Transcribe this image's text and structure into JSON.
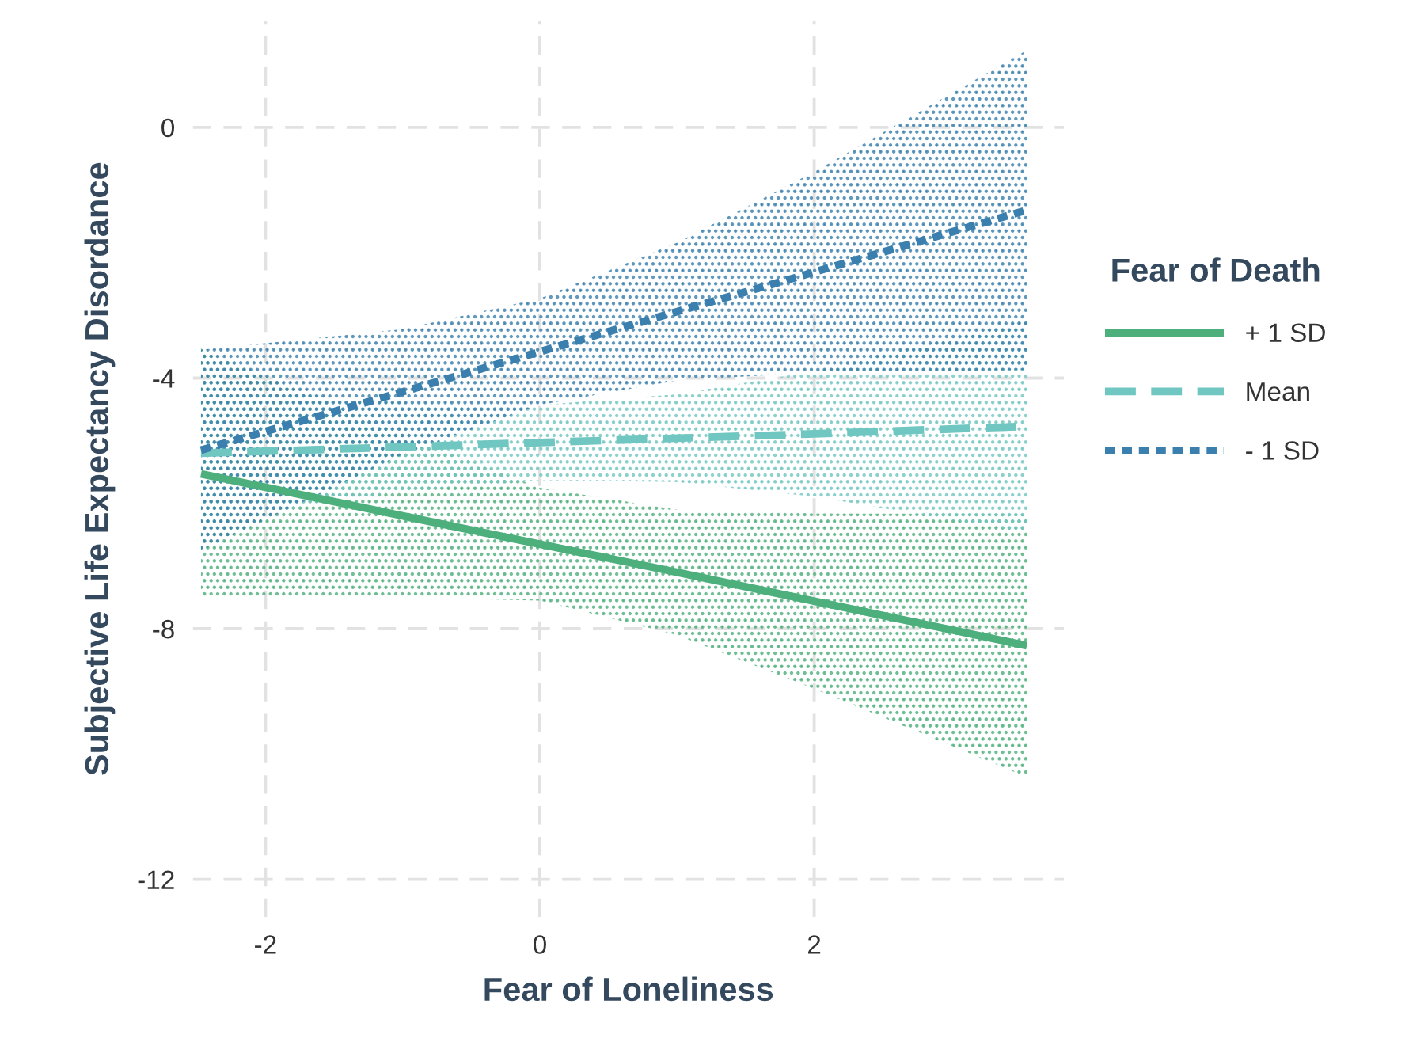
{
  "chart_data": {
    "type": "line",
    "xlabel": "Fear of Loneliness",
    "ylabel": "Subjective Life Expectancy Disordance",
    "legend_title": "Fear of Death",
    "x": [
      -2.47,
      -1,
      0,
      1,
      2,
      3.55
    ],
    "series": [
      {
        "name": "+ 1 SD",
        "color": "#4daf7c",
        "line_style": "solid",
        "values": [
          -5.53,
          -6.2,
          -6.65,
          -7.1,
          -7.56,
          -8.27
        ],
        "lower": [
          -7.53,
          -7.5,
          -7.55,
          -8.1,
          -8.96,
          -10.37
        ],
        "upper": [
          -3.53,
          -4.9,
          -5.75,
          -6.1,
          -6.16,
          -6.17
        ]
      },
      {
        "name": "Mean",
        "color": "#70c6c0",
        "line_style": "dashed",
        "values": [
          -5.2,
          -5.1,
          -5.03,
          -4.96,
          -4.89,
          -4.77
        ],
        "lower": [
          -6.3,
          -5.8,
          -5.63,
          -5.66,
          -5.89,
          -6.47
        ],
        "upper": [
          -4.1,
          -4.4,
          -4.43,
          -4.26,
          -3.89,
          -3.07
        ]
      },
      {
        "name": "- 1 SD",
        "color": "#3a7fad",
        "line_style": "dotted",
        "values": [
          -5.15,
          -4.22,
          -3.58,
          -2.94,
          -2.31,
          -1.32
        ],
        "lower": [
          -6.75,
          -5.22,
          -4.43,
          -4.04,
          -3.91,
          -3.87
        ],
        "upper": [
          -3.55,
          -3.22,
          -2.73,
          -1.84,
          -0.71,
          1.23
        ]
      }
    ],
    "xlim": [
      -2.53,
      3.82
    ],
    "ylim": [
      -12.6,
      1.7
    ],
    "xticks": [
      -2,
      0,
      2
    ],
    "yticks": [
      -12,
      -8,
      -4,
      0
    ],
    "grid": true,
    "legend": "right"
  }
}
